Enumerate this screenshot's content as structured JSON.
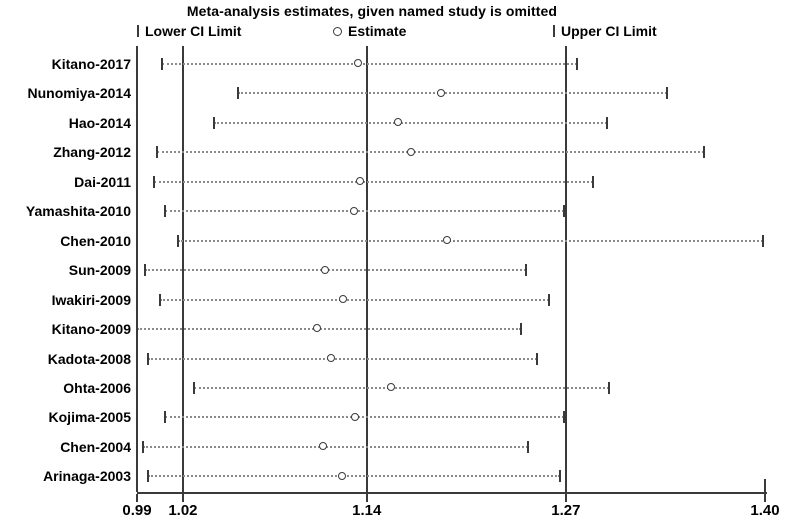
{
  "chart_data": {
    "type": "scatter",
    "variant": "leave-one-out-sensitivity-forest",
    "title": "Meta-analysis estimates, given named study is omitted",
    "legend": [
      {
        "symbol": "lower-ci-tick",
        "label": "Lower CI Limit"
      },
      {
        "symbol": "estimate-circle",
        "label": "Estimate"
      },
      {
        "symbol": "upper-ci-tick",
        "label": "Upper CI Limit"
      }
    ],
    "legend_position": "top",
    "grid": false,
    "xlabel": "",
    "ylabel": "",
    "xlim": [
      0.99,
      1.4
    ],
    "x_ticks": [
      0.99,
      1.02,
      1.14,
      1.27,
      1.4
    ],
    "x_tick_labels": [
      "0.99",
      "1.02",
      "1.14",
      "1.27",
      "1.40"
    ],
    "reference_lines": [
      1.02,
      1.14,
      1.27
    ],
    "studies": [
      {
        "name": "Kitano-2017",
        "lower": 1.006,
        "estimate": 1.135,
        "upper": 1.277
      },
      {
        "name": "Nunomiya-2014",
        "lower": 1.056,
        "estimate": 1.189,
        "upper": 1.336
      },
      {
        "name": "Hao-2014",
        "lower": 1.04,
        "estimate": 1.161,
        "upper": 1.297
      },
      {
        "name": "Zhang-2012",
        "lower": 1.003,
        "estimate": 1.169,
        "upper": 1.36
      },
      {
        "name": "Dai-2011",
        "lower": 1.001,
        "estimate": 1.136,
        "upper": 1.288
      },
      {
        "name": "Yamashita-2010",
        "lower": 1.008,
        "estimate": 1.132,
        "upper": 1.269
      },
      {
        "name": "Chen-2010",
        "lower": 1.017,
        "estimate": 1.193,
        "upper": 1.399
      },
      {
        "name": "Sun-2009",
        "lower": 0.995,
        "estimate": 1.113,
        "upper": 1.244
      },
      {
        "name": "Iwakiri-2009",
        "lower": 1.005,
        "estimate": 1.125,
        "upper": 1.259
      },
      {
        "name": "Kitano-2009",
        "lower": 0.99,
        "estimate": 1.108,
        "upper": 1.241
      },
      {
        "name": "Kadota-2008",
        "lower": 0.997,
        "estimate": 1.117,
        "upper": 1.251
      },
      {
        "name": "Ohta-2006",
        "lower": 1.027,
        "estimate": 1.156,
        "upper": 1.298
      },
      {
        "name": "Kojima-2005",
        "lower": 1.008,
        "estimate": 1.133,
        "upper": 1.269
      },
      {
        "name": "Chen-2004",
        "lower": 0.994,
        "estimate": 1.112,
        "upper": 1.245
      },
      {
        "name": "Arinaga-2003",
        "lower": 0.997,
        "estimate": 1.124,
        "upper": 1.266
      }
    ]
  },
  "colors": {
    "frame_and_lines": "#3a3a3a",
    "dotted_interval": "#8a8a8a",
    "text": "#000000",
    "background": "#ffffff",
    "marker_fill": "#ffffff"
  }
}
